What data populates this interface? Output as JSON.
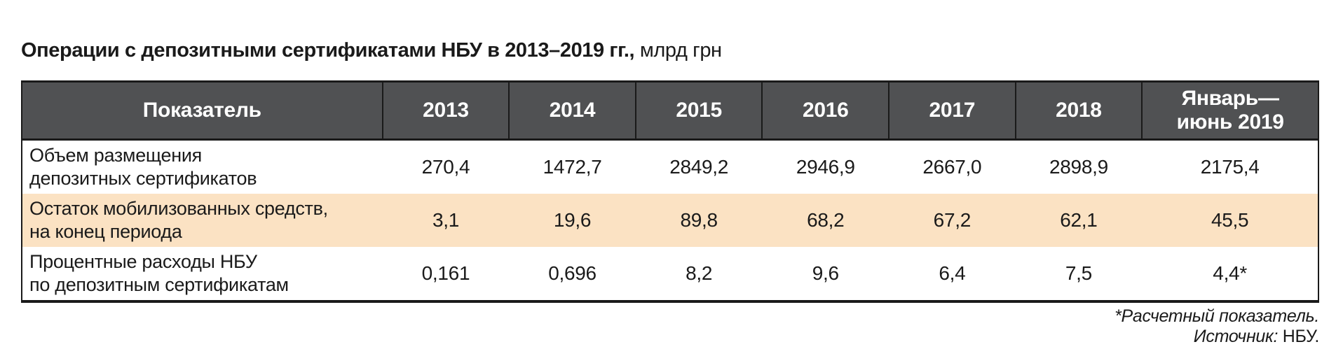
{
  "title": {
    "bold": "Операции с депозитными сертификатами НБУ в 2013–2019 гг.,",
    "units": " млрд грн"
  },
  "table": {
    "columns": [
      "Показатель",
      "2013",
      "2014",
      "2015",
      "2016",
      "2017",
      "2018",
      "Январь—июнь 2019"
    ],
    "rows": [
      {
        "label_line1": "Объем размещения",
        "label_line2": "депозитных сертификатов",
        "values": [
          "270,4",
          "1472,7",
          "2849,2",
          "2946,9",
          "2667,0",
          "2898,9",
          "2175,4"
        ]
      },
      {
        "label_line1": "Остаток мобилизованных средств,",
        "label_line2": "на конец периода",
        "values": [
          "3,1",
          "19,6",
          "89,8",
          "68,2",
          "67,2",
          "62,1",
          "45,5"
        ]
      },
      {
        "label_line1": "Процентные расходы НБУ",
        "label_line2": "по депозитным сертификатам",
        "values": [
          "0,161",
          "0,696",
          "8,2",
          "9,6",
          "6,4",
          "7,5",
          "4,4*"
        ]
      }
    ]
  },
  "footnotes": {
    "note": "*Расчетный показатель.",
    "source_label": "Источник:",
    "source_value": " НБУ."
  },
  "colors": {
    "header_bg": "#505153",
    "header_text": "#ffffff",
    "highlight_row_bg": "#fbe2c3",
    "border": "#1a1a1a",
    "text": "#1a1a1a",
    "background": "#ffffff"
  }
}
